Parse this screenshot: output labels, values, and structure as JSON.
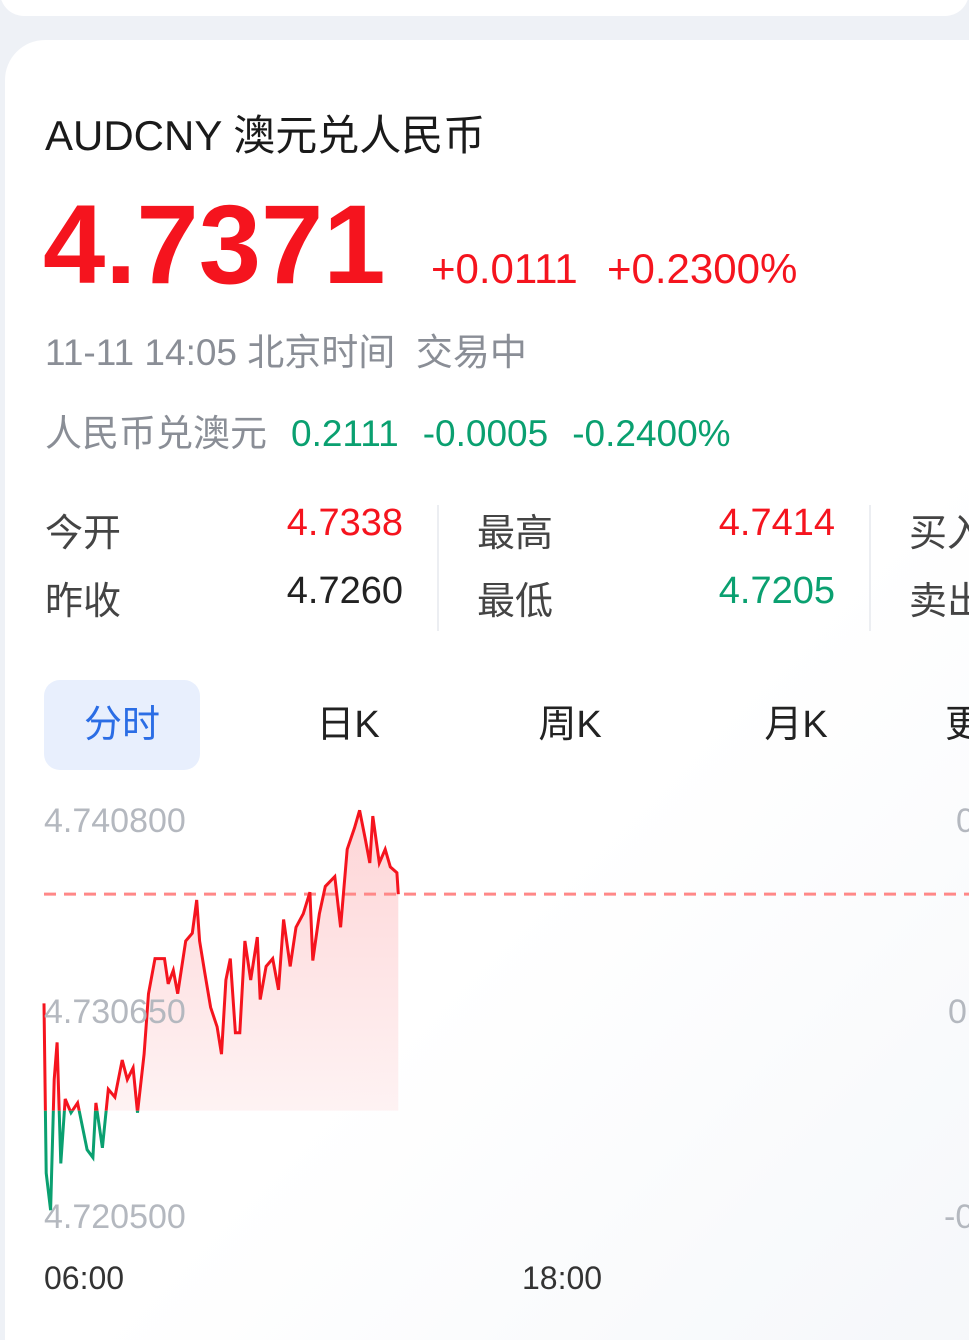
{
  "header": {
    "symbol": "AUDCNY",
    "name": "澳元兑人民币"
  },
  "quote": {
    "price": "4.7371",
    "change": "+0.0111",
    "change_pct": "+0.2300%",
    "timestamp": "11-11 14:05 北京时间",
    "status": "交易中"
  },
  "inverse": {
    "label": "人民币兑澳元",
    "price": "0.2111",
    "change": "-0.0005",
    "change_pct": "-0.2400%"
  },
  "stats": [
    {
      "label": "今开",
      "value": "4.7338",
      "color": "red"
    },
    {
      "label": "昨收",
      "value": "4.7260",
      "color": "dark"
    },
    {
      "label": "最高",
      "value": "4.7414",
      "color": "red"
    },
    {
      "label": "最低",
      "value": "4.7205",
      "color": "green"
    },
    {
      "label": "买入",
      "value": ""
    },
    {
      "label": "卖出",
      "value": ""
    }
  ],
  "tabs": [
    {
      "label": "分时",
      "active": true
    },
    {
      "label": "日K"
    },
    {
      "label": "周K"
    },
    {
      "label": "月K"
    },
    {
      "label": "更多"
    }
  ],
  "colors": {
    "up": "#f5141e",
    "down": "#0aa070",
    "accent": "#2b6de5"
  },
  "chart_data": {
    "type": "line",
    "y_ticks": [
      "4.740800",
      "4.730650",
      "4.720500"
    ],
    "right_ticks": [
      "0",
      "0",
      "-0"
    ],
    "x_ticks": [
      "06:00",
      "18:00"
    ],
    "ylim": [
      4.7205,
      4.7408
    ],
    "xlim": [
      "06:00",
      "06:00+1"
    ],
    "previous_close": 4.726,
    "current_price_line": 4.7371,
    "x": [
      "06:00",
      "06:03",
      "06:09",
      "06:14",
      "06:18",
      "06:23",
      "06:29",
      "06:37",
      "06:46",
      "06:59",
      "07:07",
      "07:11",
      "07:20",
      "07:28",
      "07:37",
      "07:47",
      "07:54",
      "08:02",
      "08:08",
      "08:17",
      "08:23",
      "08:32",
      "08:45",
      "08:50",
      "08:57",
      "09:03",
      "09:14",
      "09:23",
      "09:29",
      "09:33",
      "09:40",
      "09:48",
      "09:57",
      "10:03",
      "10:09",
      "10:15",
      "10:22",
      "10:28",
      "10:35",
      "10:43",
      "10:52",
      "10:56",
      "11:04",
      "11:13",
      "11:21",
      "11:28",
      "11:37",
      "11:45",
      "11:55",
      "12:04",
      "12:08",
      "12:17",
      "12:25",
      "12:38",
      "12:46",
      "12:55",
      "13:05",
      "13:12",
      "13:20",
      "13:26",
      "13:30",
      "13:39",
      "13:47",
      "13:54",
      "14:03",
      "14:05"
    ],
    "values": [
      4.7315,
      4.7228,
      4.7209,
      4.7276,
      4.7295,
      4.7233,
      4.7266,
      4.7259,
      4.7264,
      4.724,
      4.7236,
      4.7264,
      4.7241,
      4.7271,
      4.7267,
      4.7286,
      4.7276,
      4.7282,
      4.7259,
      4.7289,
      4.732,
      4.7338,
      4.7338,
      4.7325,
      4.7332,
      4.732,
      4.7347,
      4.7351,
      4.7368,
      4.7347,
      4.7331,
      4.7313,
      4.7303,
      4.7289,
      4.7327,
      4.7338,
      4.73,
      4.73,
      4.7347,
      4.7327,
      4.7349,
      4.7317,
      4.7334,
      4.7338,
      4.7322,
      4.7358,
      4.7334,
      4.7354,
      4.7361,
      4.7372,
      4.7337,
      4.7361,
      4.7375,
      4.738,
      4.7354,
      4.7394,
      4.7405,
      4.7414,
      4.7399,
      4.7387,
      4.7411,
      4.7387,
      4.7394,
      4.7385,
      4.7382,
      4.7371
    ]
  }
}
